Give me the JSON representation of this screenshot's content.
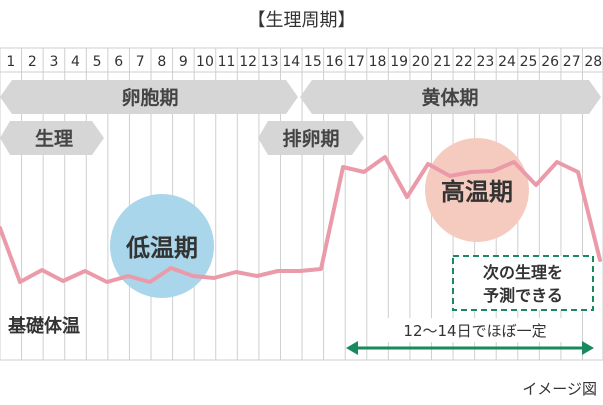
{
  "title": "【生理周期】",
  "days": [
    "1",
    "2",
    "3",
    "4",
    "5",
    "6",
    "7",
    "8",
    "9",
    "10",
    "11",
    "12",
    "13",
    "14",
    "15",
    "16",
    "17",
    "18",
    "19",
    "20",
    "21",
    "22",
    "23",
    "24",
    "25",
    "26",
    "27",
    "28"
  ],
  "phases": {
    "follicular": "卵胞期",
    "luteal": "黄体期",
    "menstruation": "生理",
    "ovulation": "排卵期"
  },
  "low_temp_label": "低温期",
  "high_temp_label": "高温期",
  "bbt_label": "基礎体温",
  "next_period_note": [
    "次の生理を",
    "予測できる"
  ],
  "span_label": "12〜14日でほぼ一定",
  "image_note": "イメージ図",
  "colors": {
    "line": "#eb9aa9",
    "arrow": "#d6d6d6",
    "grid": "#cfcfcf",
    "low_circle": "#a9d6ea",
    "high_circle": "#f6cbbf",
    "green": "#1a8a5e"
  }
}
